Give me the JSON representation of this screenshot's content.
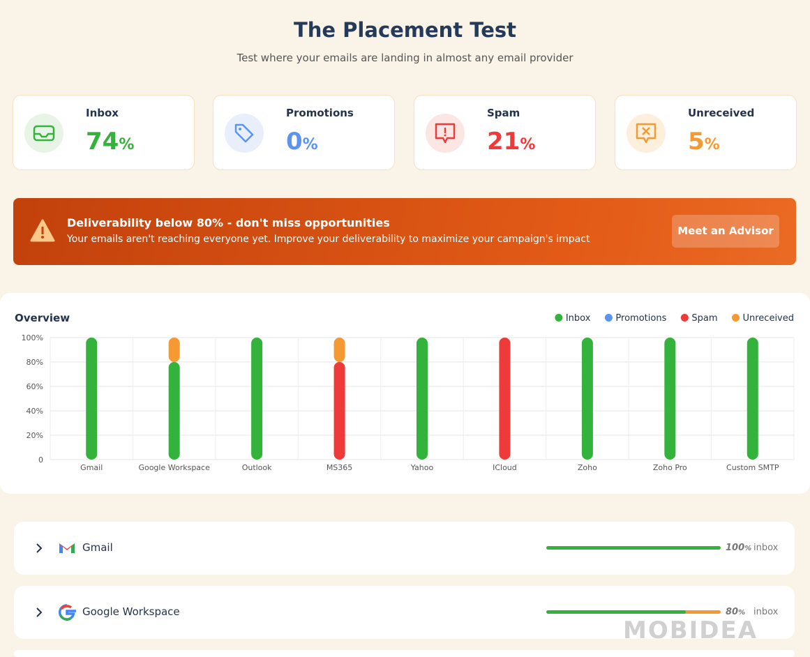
{
  "header": {
    "title": "The Placement Test",
    "subtitle": "Test where your emails are landing in almost any email provider"
  },
  "stats": [
    {
      "label": "Inbox",
      "value": 74,
      "unit": "%",
      "color": "#34b33c",
      "bg": "#e8f5e6"
    },
    {
      "label": "Promotions",
      "value": 0,
      "unit": "%",
      "color": "#5b93ef",
      "bg": "#e8effb"
    },
    {
      "label": "Spam",
      "value": 21,
      "unit": "%",
      "color": "#ef3a3a",
      "bg": "#fbe6e3"
    },
    {
      "label": "Unreceived",
      "value": 5,
      "unit": "%",
      "color": "#f59a32",
      "bg": "#fcf0dc"
    }
  ],
  "alert": {
    "title": "Deliverability below 80% - don't miss opportunities",
    "text": "Your emails aren't reaching everyone yet. Improve your deliverability to maximize your campaign's impact",
    "button": "Meet an Advisor"
  },
  "chart_data": {
    "type": "bar",
    "stacked": true,
    "title": "Overview",
    "categories": [
      "Gmail",
      "Google Workspace",
      "Outlook",
      "MS365",
      "Yahoo",
      "ICloud",
      "Zoho",
      "Zoho Pro",
      "Custom SMTP"
    ],
    "series": [
      {
        "name": "Inbox",
        "color": "#34b33c",
        "values": [
          100,
          80,
          100,
          0,
          100,
          0,
          100,
          100,
          100
        ]
      },
      {
        "name": "Promotions",
        "color": "#5b93ef",
        "values": [
          0,
          0,
          0,
          0,
          0,
          0,
          0,
          0,
          0
        ]
      },
      {
        "name": "Spam",
        "color": "#ef3a3a",
        "values": [
          0,
          0,
          0,
          80,
          0,
          100,
          0,
          0,
          0
        ]
      },
      {
        "name": "Unreceived",
        "color": "#f59a32",
        "values": [
          0,
          20,
          0,
          20,
          0,
          0,
          0,
          0,
          0
        ]
      }
    ],
    "ylim": [
      0,
      100
    ],
    "yticks": [
      0,
      {
        "value": 20,
        "label": "20%"
      },
      {
        "value": 40,
        "label": "40%"
      },
      {
        "value": 60,
        "label": "60%"
      },
      {
        "value": 80,
        "label": "80%"
      },
      {
        "value": 100,
        "label": "100%"
      }
    ],
    "grid": true,
    "legend": "top-right"
  },
  "providers": [
    {
      "name": "Gmail",
      "value": 100,
      "unit": "%",
      "label": "inbox"
    },
    {
      "name": "Google Workspace",
      "value": 80,
      "unit": "%",
      "label": "inbox"
    }
  ],
  "watermark": "MOBIDEA"
}
